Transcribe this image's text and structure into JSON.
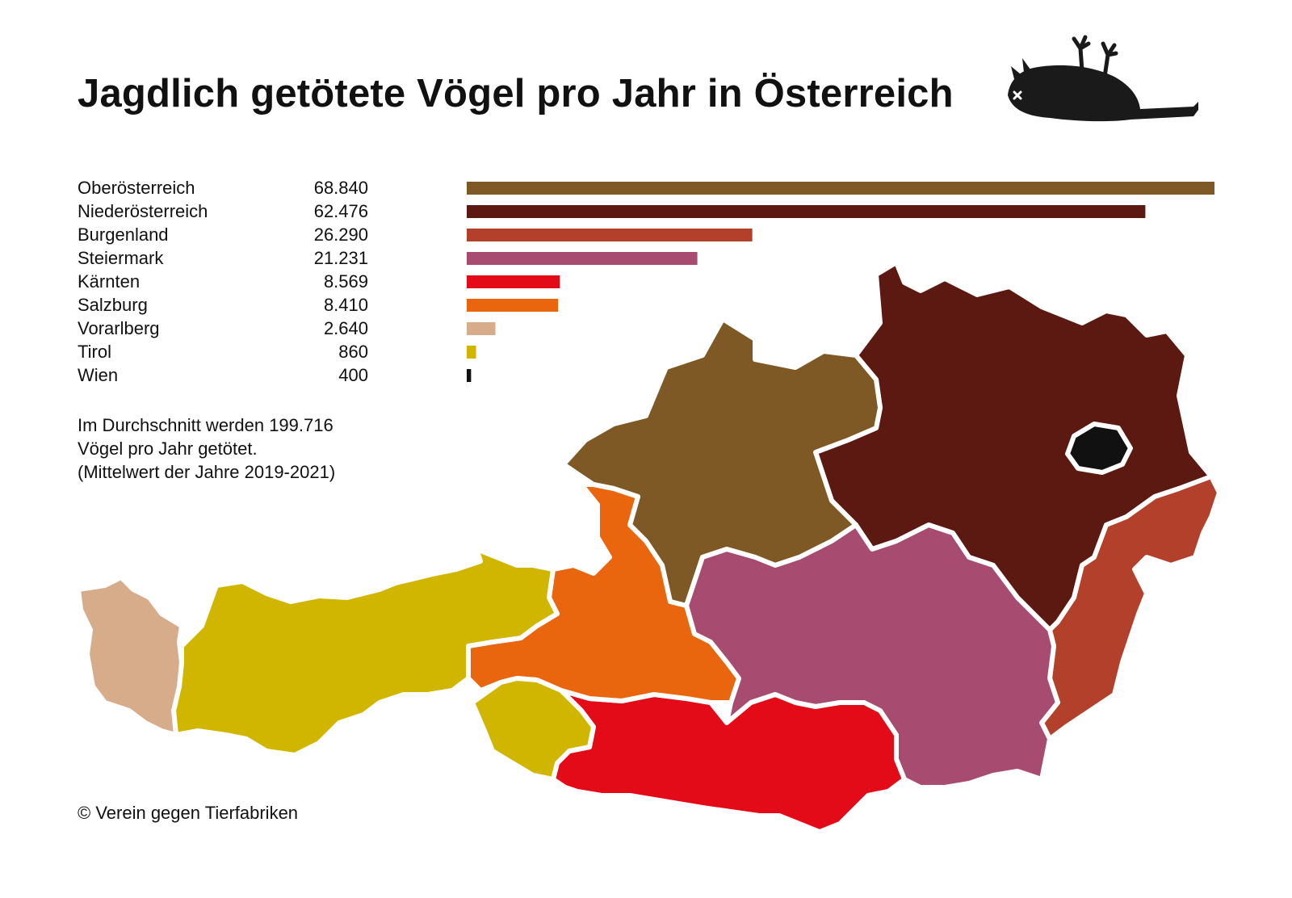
{
  "title": "Jagdlich getötete Vögel pro Jahr in Österreich",
  "chart_data": {
    "type": "bar",
    "orientation": "horizontal",
    "title": "Jagdlich getötete Vögel pro Jahr in Österreich",
    "categories": [
      "Oberösterreich",
      "Niederösterreich",
      "Burgenland",
      "Steiermark",
      "Kärnten",
      "Salzburg",
      "Vorarlberg",
      "Tirol",
      "Wien"
    ],
    "values": [
      68840,
      62476,
      26290,
      21231,
      8569,
      8410,
      2640,
      860,
      400
    ],
    "value_labels": [
      "68.840",
      "62.476",
      "26.290",
      "21.231",
      "8.569",
      "8.410",
      "2.640",
      "860",
      "400"
    ],
    "colors": [
      "#7f5925",
      "#5c1912",
      "#b3402a",
      "#a84b70",
      "#e30b17",
      "#e9650e",
      "#d6ac8b",
      "#d0b600",
      "#111111"
    ],
    "xlim": [
      0,
      68840
    ],
    "grid": false,
    "legend": "none"
  },
  "note": {
    "line1": "Im Durchschnitt werden 199.716",
    "line2": "Vögel pro Jahr getötet.",
    "line3": "(Mittelwert der Jahre 2019-2021)"
  },
  "credit": "© Verein gegen Tierfabriken",
  "map": {
    "regions": [
      {
        "name": "Vorarlberg",
        "color": "#d6ac8b"
      },
      {
        "name": "Tirol",
        "color": "#d0b600"
      },
      {
        "name": "Salzburg",
        "color": "#e9650e"
      },
      {
        "name": "Oberösterreich",
        "color": "#7f5925"
      },
      {
        "name": "Niederösterreich",
        "color": "#5c1912"
      },
      {
        "name": "Wien",
        "color": "#111111"
      },
      {
        "name": "Burgenland",
        "color": "#b3402a"
      },
      {
        "name": "Steiermark",
        "color": "#a84b70"
      },
      {
        "name": "Kärnten",
        "color": "#e30b17"
      }
    ]
  },
  "icon": "dead-bird-icon"
}
